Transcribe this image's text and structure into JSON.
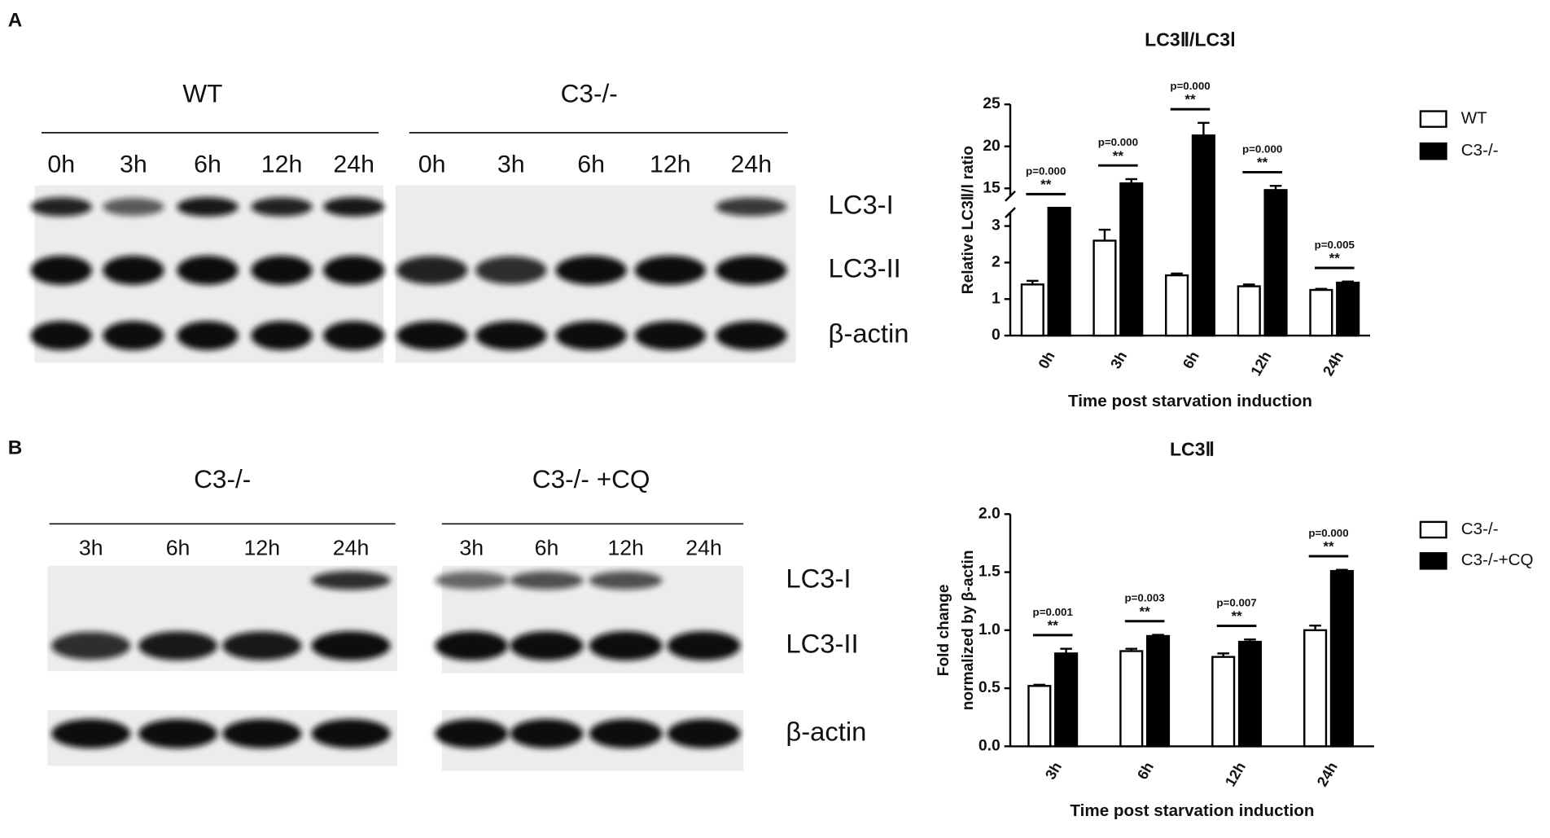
{
  "panels": [
    {
      "label": "A",
      "blot": {
        "groups": [
          {
            "title": "WT",
            "lanes": [
              "0h",
              "3h",
              "6h",
              "12h",
              "24h"
            ]
          },
          {
            "title": "C3-/-",
            "lanes": [
              "0h",
              "3h",
              "6h",
              "12h",
              "24h"
            ]
          }
        ],
        "rows": [
          "LC3-I",
          "LC3-II",
          "β-actin"
        ]
      }
    },
    {
      "label": "B",
      "blot": {
        "groups": [
          {
            "title": "C3-/-",
            "lanes": [
              "3h",
              "6h",
              "12h",
              "24h"
            ]
          },
          {
            "title": "C3-/- +CQ",
            "lanes": [
              "3h",
              "6h",
              "12h",
              "24h"
            ]
          }
        ],
        "rows": [
          "LC3-I",
          "LC3-II",
          "β-actin"
        ]
      }
    }
  ],
  "chart_data": [
    {
      "type": "bar",
      "title": "LC3Ⅱ/LC3Ⅰ",
      "y_label": "Relative LC3Ⅱ/Ⅰ ratio",
      "x_label": "Time post starvation induction",
      "categories": [
        "0h",
        "3h",
        "6h",
        "12h",
        "24h"
      ],
      "series": [
        {
          "name": "WT",
          "color": "#ffffff",
          "values": [
            1.4,
            2.6,
            1.65,
            1.35,
            1.25
          ],
          "errors": [
            0.1,
            0.3,
            0.05,
            0.05,
            0.03
          ]
        },
        {
          "name": "C3-/-",
          "color": "#000000",
          "values": [
            10,
            15.6,
            21.3,
            14.8,
            1.45
          ],
          "errors": [
            null,
            0.5,
            1.5,
            0.5,
            0.03
          ]
        }
      ],
      "ylim": [
        0,
        25
      ],
      "axis_break": [
        3.5,
        13.5
      ],
      "yticks": [
        0,
        1,
        2,
        3,
        15,
        20,
        25
      ],
      "annotations": [
        {
          "p": "p=0.000",
          "stars": "**"
        },
        {
          "p": "p=0.000",
          "stars": "**"
        },
        {
          "p": "p=0.000",
          "stars": "**"
        },
        {
          "p": "p=0.000",
          "stars": "**"
        },
        {
          "p": "p=0.005",
          "stars": "**"
        }
      ],
      "legend": "right"
    },
    {
      "type": "bar",
      "title": "LC3Ⅱ",
      "y_label": [
        "Fold change",
        "normalized by β-actin"
      ],
      "x_label": "Time post starvation induction",
      "categories": [
        "3h",
        "6h",
        "12h",
        "24h"
      ],
      "series": [
        {
          "name": "C3-/-",
          "color": "#ffffff",
          "values": [
            0.52,
            0.82,
            0.77,
            1.0
          ],
          "errors": [
            0.01,
            0.02,
            0.03,
            0.04
          ]
        },
        {
          "name": "C3-/-+CQ",
          "color": "#000000",
          "values": [
            0.8,
            0.95,
            0.9,
            1.51
          ],
          "errors": [
            0.04,
            0.01,
            0.02,
            0.01
          ]
        }
      ],
      "ylim": [
        0,
        2
      ],
      "yticks": [
        {
          "value": 0,
          "label": "0.0"
        },
        {
          "value": 0.5,
          "label": "0.5"
        },
        {
          "value": 1,
          "label": "1.0"
        },
        {
          "value": 1.5,
          "label": "1.5"
        },
        {
          "value": 2,
          "label": "2.0"
        }
      ],
      "annotations": [
        {
          "p": "p=0.001",
          "stars": "**"
        },
        {
          "p": "p=0.003",
          "stars": "**"
        },
        {
          "p": "p=0.007",
          "stars": "**"
        },
        {
          "p": "p=0.000",
          "stars": "**"
        }
      ],
      "legend": "right"
    }
  ]
}
